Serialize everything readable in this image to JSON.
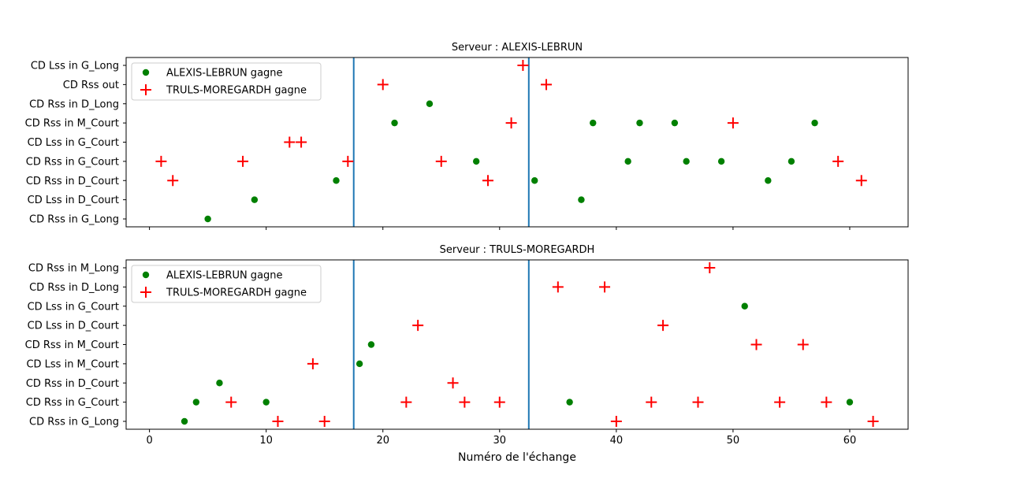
{
  "xlabel": "Numéro de l'échange",
  "xlim": [
    -2,
    65
  ],
  "xticks": [
    0,
    10,
    20,
    30,
    40,
    50,
    60
  ],
  "vlines": [
    17.5,
    32.5
  ],
  "colors": {
    "win_a": "#008000",
    "win_b": "#ff0000",
    "vline": "#1f77b4"
  },
  "legend_labels": {
    "a": "ALEXIS-LEBRUN gagne",
    "b": "TRULS-MOREGARDH gagne"
  },
  "chart_data": [
    {
      "type": "scatter",
      "title": "Serveur : ALEXIS-LEBRUN",
      "legend_position": "upper-left",
      "categories": [
        "CD Rss in G_Long",
        "CD Lss in D_Court",
        "CD Rss in D_Court",
        "CD Rss in G_Court",
        "CD Lss in G_Court",
        "CD Rss in M_Court",
        "CD Rss in D_Long",
        "CD Rss out",
        "CD Lss in G_Long"
      ],
      "series": [
        {
          "name": "ALEXIS-LEBRUN gagne",
          "marker": "circle",
          "points": [
            [
              5,
              "CD Rss in G_Long"
            ],
            [
              9,
              "CD Lss in D_Court"
            ],
            [
              16,
              "CD Rss in D_Court"
            ],
            [
              21,
              "CD Rss in M_Court"
            ],
            [
              24,
              "CD Rss in D_Long"
            ],
            [
              28,
              "CD Rss in G_Court"
            ],
            [
              33,
              "CD Rss in D_Court"
            ],
            [
              37,
              "CD Lss in D_Court"
            ],
            [
              38,
              "CD Rss in M_Court"
            ],
            [
              41,
              "CD Rss in G_Court"
            ],
            [
              42,
              "CD Rss in M_Court"
            ],
            [
              45,
              "CD Rss in M_Court"
            ],
            [
              46,
              "CD Rss in G_Court"
            ],
            [
              49,
              "CD Rss in G_Court"
            ],
            [
              53,
              "CD Rss in D_Court"
            ],
            [
              55,
              "CD Rss in G_Court"
            ],
            [
              57,
              "CD Rss in M_Court"
            ]
          ]
        },
        {
          "name": "TRULS-MOREGARDH gagne",
          "marker": "plus",
          "points": [
            [
              1,
              "CD Rss in G_Court"
            ],
            [
              2,
              "CD Rss in D_Court"
            ],
            [
              8,
              "CD Rss in G_Court"
            ],
            [
              12,
              "CD Lss in G_Court"
            ],
            [
              13,
              "CD Lss in G_Court"
            ],
            [
              17,
              "CD Rss in G_Court"
            ],
            [
              20,
              "CD Rss out"
            ],
            [
              25,
              "CD Rss in G_Court"
            ],
            [
              29,
              "CD Rss in D_Court"
            ],
            [
              31,
              "CD Rss in M_Court"
            ],
            [
              32,
              "CD Lss in G_Long"
            ],
            [
              34,
              "CD Rss out"
            ],
            [
              50,
              "CD Rss in M_Court"
            ],
            [
              59,
              "CD Rss in G_Court"
            ],
            [
              61,
              "CD Rss in D_Court"
            ]
          ]
        }
      ]
    },
    {
      "type": "scatter",
      "title": "Serveur : TRULS-MOREGARDH",
      "legend_position": "upper-left",
      "categories": [
        "CD Rss in G_Long",
        "CD Rss in G_Court",
        "CD Rss in D_Court",
        "CD Lss in M_Court",
        "CD Rss in M_Court",
        "CD Lss in D_Court",
        "CD Lss in G_Court",
        "CD Rss in D_Long",
        "CD Rss in M_Long"
      ],
      "series": [
        {
          "name": "ALEXIS-LEBRUN gagne",
          "marker": "circle",
          "points": [
            [
              3,
              "CD Rss in G_Long"
            ],
            [
              4,
              "CD Rss in G_Court"
            ],
            [
              6,
              "CD Rss in D_Court"
            ],
            [
              10,
              "CD Rss in G_Court"
            ],
            [
              18,
              "CD Lss in M_Court"
            ],
            [
              19,
              "CD Rss in M_Court"
            ],
            [
              36,
              "CD Rss in G_Court"
            ],
            [
              51,
              "CD Lss in G_Court"
            ],
            [
              60,
              "CD Rss in G_Court"
            ]
          ]
        },
        {
          "name": "TRULS-MOREGARDH gagne",
          "marker": "plus",
          "points": [
            [
              7,
              "CD Rss in G_Court"
            ],
            [
              11,
              "CD Rss in G_Long"
            ],
            [
              14,
              "CD Lss in M_Court"
            ],
            [
              15,
              "CD Rss in G_Long"
            ],
            [
              22,
              "CD Rss in G_Court"
            ],
            [
              23,
              "CD Lss in D_Court"
            ],
            [
              26,
              "CD Rss in D_Court"
            ],
            [
              27,
              "CD Rss in G_Court"
            ],
            [
              30,
              "CD Rss in G_Court"
            ],
            [
              35,
              "CD Rss in D_Long"
            ],
            [
              39,
              "CD Rss in D_Long"
            ],
            [
              40,
              "CD Rss in G_Long"
            ],
            [
              43,
              "CD Rss in G_Court"
            ],
            [
              44,
              "CD Lss in D_Court"
            ],
            [
              47,
              "CD Rss in G_Court"
            ],
            [
              48,
              "CD Rss in M_Long"
            ],
            [
              52,
              "CD Rss in M_Court"
            ],
            [
              54,
              "CD Rss in G_Court"
            ],
            [
              56,
              "CD Rss in M_Court"
            ],
            [
              58,
              "CD Rss in G_Court"
            ],
            [
              62,
              "CD Rss in G_Long"
            ]
          ]
        }
      ]
    }
  ]
}
